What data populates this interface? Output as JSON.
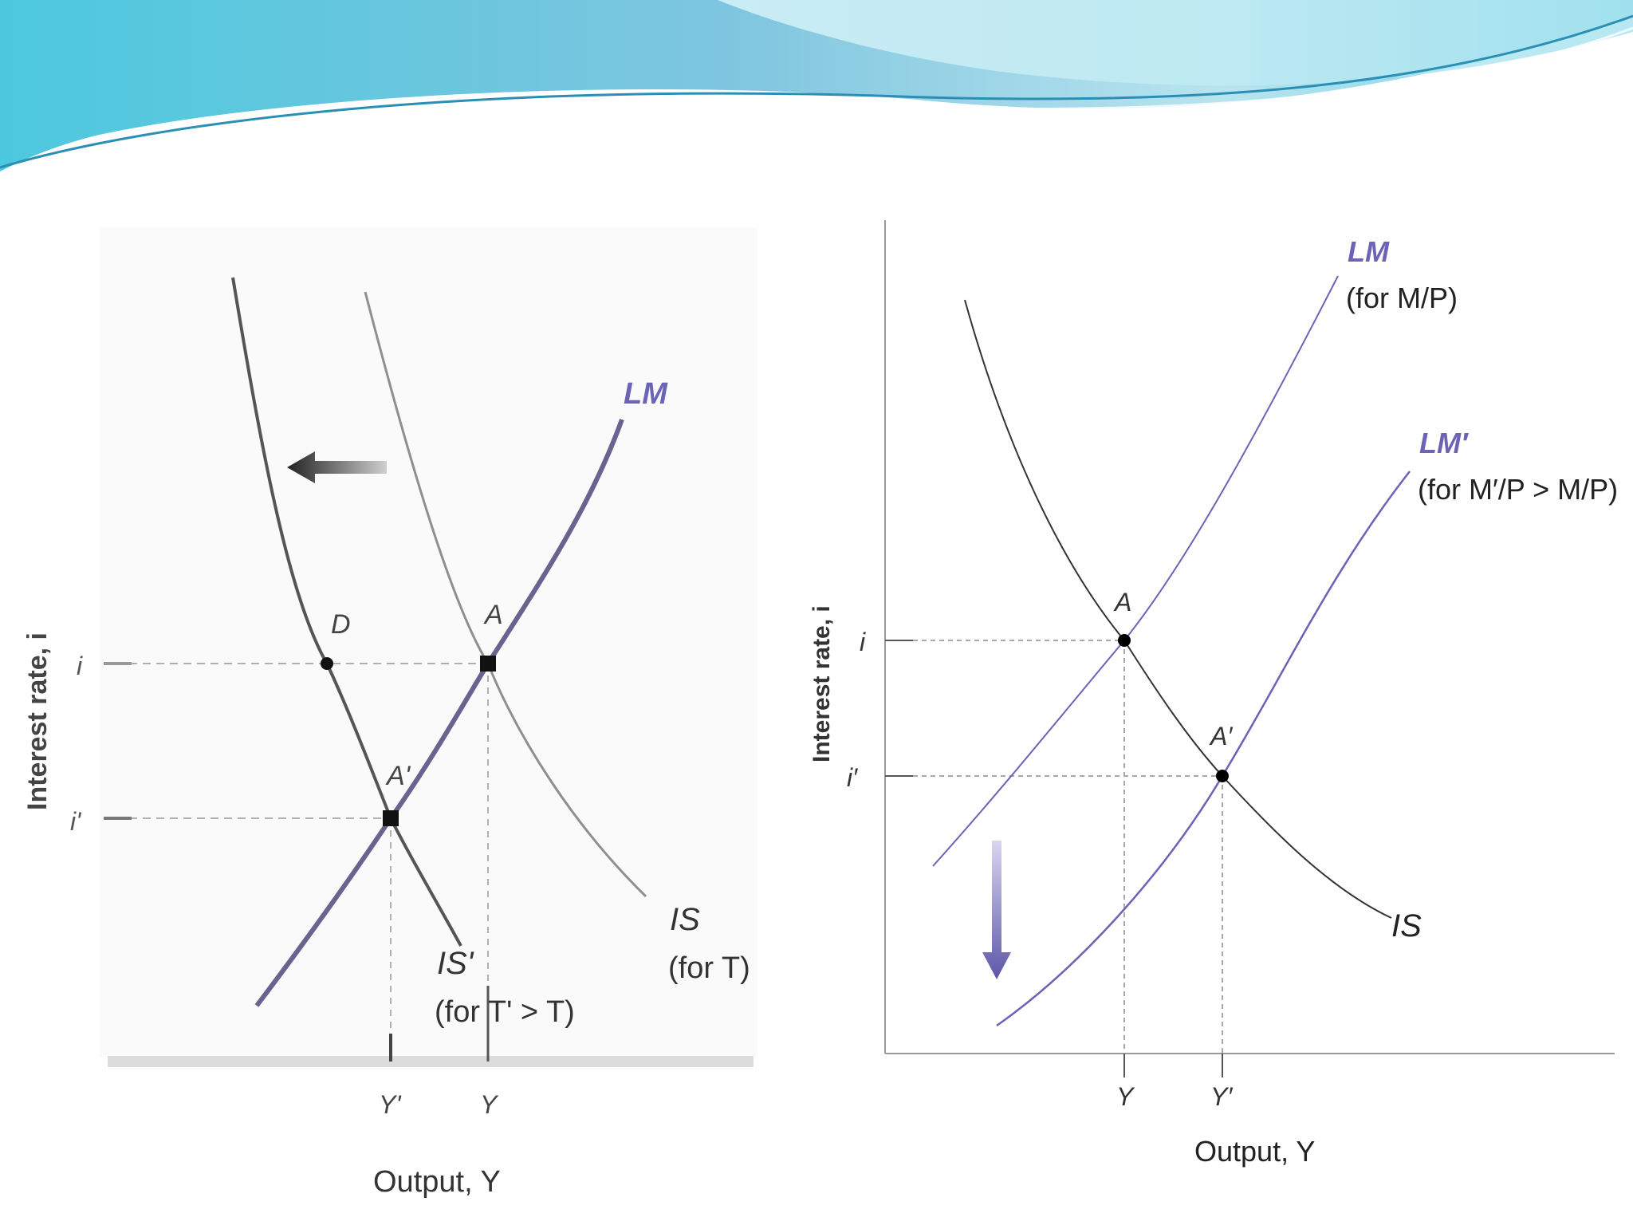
{
  "left_diagram": {
    "y_axis_label": "Interest rate, i",
    "x_axis_label": "Output, Y",
    "tick_i": "i",
    "tick_i_prime": "i'",
    "tick_y_prime": "Y'",
    "tick_y": "Y",
    "point_d": "D",
    "point_a": "A",
    "point_a_prime": "A'",
    "lm_label": "LM",
    "is_label": "IS",
    "is_sub": "(for T)",
    "is_prime_label": "IS'",
    "is_prime_sub": "(for T' > T)",
    "shift_arrow_icon": "left-arrow-icon"
  },
  "right_diagram": {
    "y_axis_label": "Interest rate, i",
    "x_axis_label": "Output, Y",
    "tick_i": "i",
    "tick_i_prime": "i′",
    "tick_y": "Y",
    "tick_y_prime": "Y′",
    "point_a": "A",
    "point_a_prime": "A′",
    "lm_label": "LM",
    "lm_sub": "(for M/P)",
    "lm_prime_label": "LM′",
    "lm_prime_sub": "(for M′/P > M/P)",
    "is_label": "IS",
    "shift_arrow_icon": "down-arrow-icon"
  },
  "colors": {
    "lm_accent": "#6b63b5",
    "curve_dark": "#333333",
    "curve_light": "#888888",
    "banner_light": "#bfe9f2",
    "banner_mid": "#6fd0e6",
    "banner_dark": "#3aa7c9"
  }
}
